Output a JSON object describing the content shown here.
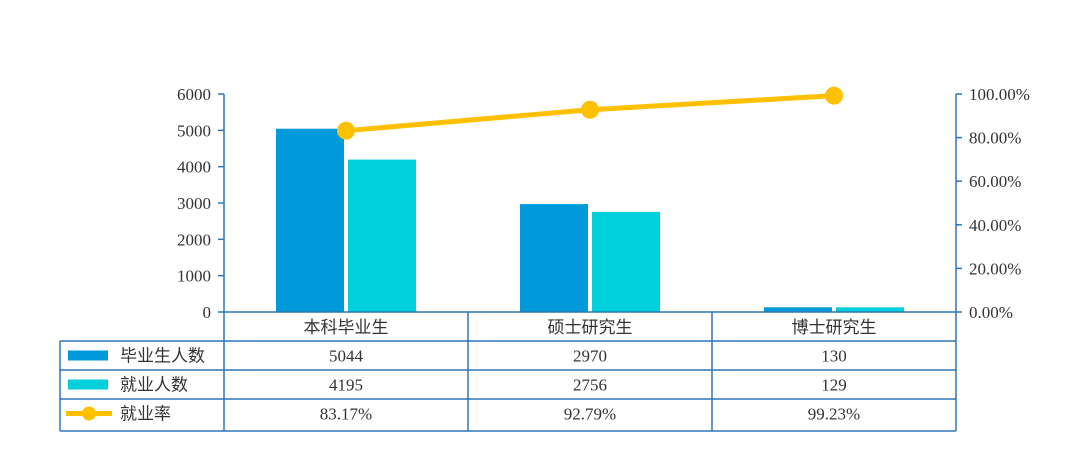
{
  "chart_data": {
    "type": "bar",
    "categories": [
      "本科毕业生",
      "硕士研究生",
      "博士研究生"
    ],
    "series": [
      {
        "name": "毕业生人数",
        "kind": "bar",
        "axis": "left",
        "color": "#0099d9",
        "values": [
          5044,
          2970,
          130
        ],
        "labels": [
          "5044",
          "2970",
          "130"
        ]
      },
      {
        "name": "就业人数",
        "kind": "bar",
        "axis": "left",
        "color": "#00cfdc",
        "values": [
          4195,
          2756,
          129
        ],
        "labels": [
          "4195",
          "2756",
          "129"
        ]
      },
      {
        "name": "就业率",
        "kind": "line",
        "axis": "right",
        "color": "#ffc000",
        "values": [
          83.17,
          92.79,
          99.23
        ],
        "labels": [
          "83.17%",
          "92.79%",
          "99.23%"
        ]
      }
    ],
    "ylim": [
      0,
      6000
    ],
    "yticks": [
      "0",
      "1000",
      "2000",
      "3000",
      "4000",
      "5000",
      "6000"
    ],
    "y2lim": [
      0,
      100
    ],
    "y2ticks": [
      "0.00%",
      "20.00%",
      "40.00%",
      "60.00%",
      "80.00%",
      "100.00%"
    ],
    "data_table": true,
    "axis_color": "#2e75b6"
  }
}
